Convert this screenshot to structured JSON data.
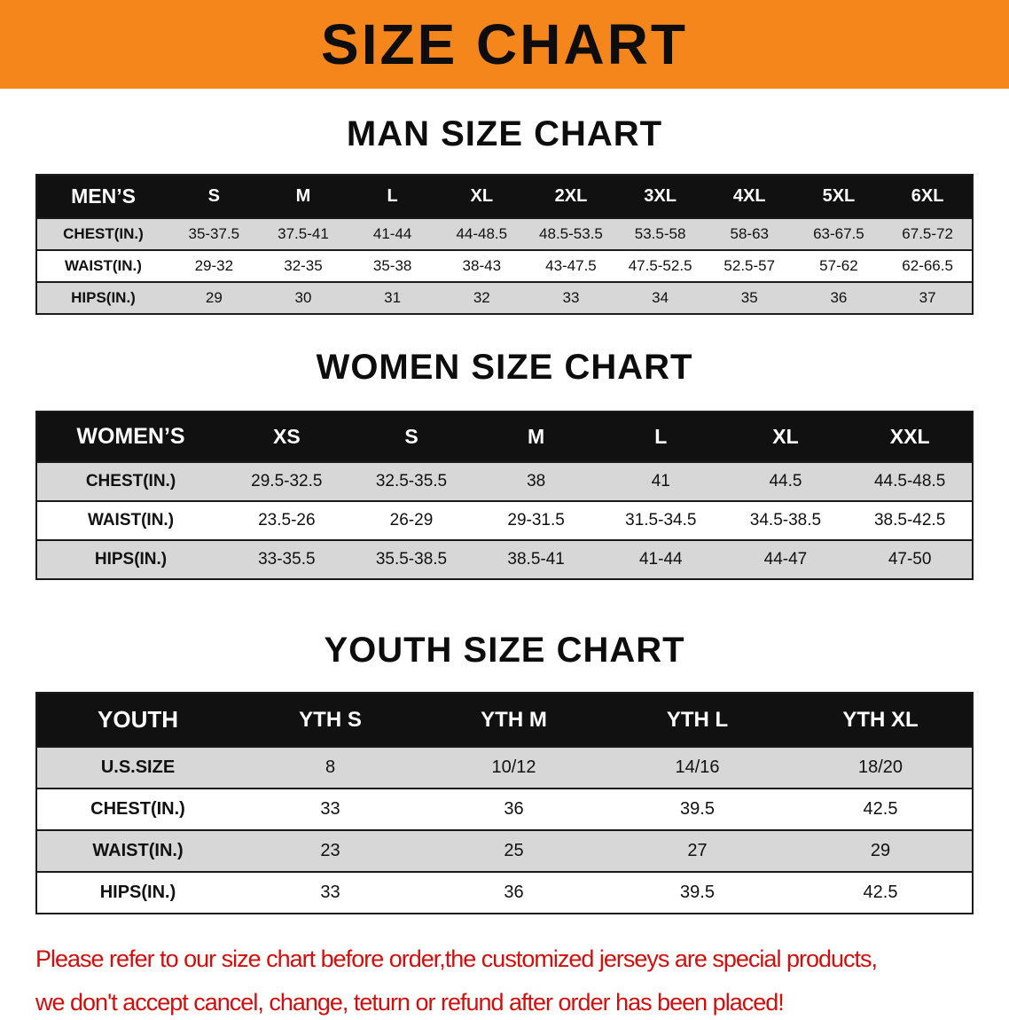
{
  "banner": {
    "title": "SIZE CHART"
  },
  "sections": [
    {
      "heading": "MAN SIZE CHART",
      "table": {
        "header": [
          "MEN’S",
          "S",
          "M",
          "L",
          "XL",
          "2XL",
          "3XL",
          "4XL",
          "5XL",
          "6XL"
        ],
        "rows": [
          [
            "CHEST(IN.)",
            "35-37.5",
            "37.5-41",
            "41-44",
            "44-48.5",
            "48.5-53.5",
            "53.5-58",
            "58-63",
            "63-67.5",
            "67.5-72"
          ],
          [
            "WAIST(IN.)",
            "29-32",
            "32-35",
            "35-38",
            "38-43",
            "43-47.5",
            "47.5-52.5",
            "52.5-57",
            "57-62",
            "62-66.5"
          ],
          [
            "HIPS(IN.)",
            "29",
            "30",
            "31",
            "32",
            "33",
            "34",
            "35",
            "36",
            "37"
          ]
        ]
      }
    },
    {
      "heading": "WOMEN SIZE CHART",
      "table": {
        "header": [
          "WOMEN’S",
          "XS",
          "S",
          "M",
          "L",
          "XL",
          "XXL"
        ],
        "rows": [
          [
            "CHEST(IN.)",
            "29.5-32.5",
            "32.5-35.5",
            "38",
            "41",
            "44.5",
            "44.5-48.5"
          ],
          [
            "WAIST(IN.)",
            "23.5-26",
            "26-29",
            "29-31.5",
            "31.5-34.5",
            "34.5-38.5",
            "38.5-42.5"
          ],
          [
            "HIPS(IN.)",
            "33-35.5",
            "35.5-38.5",
            "38.5-41",
            "41-44",
            "44-47",
            "47-50"
          ]
        ]
      }
    },
    {
      "heading": "YOUTH SIZE CHART",
      "table": {
        "header": [
          "YOUTH",
          "YTH S",
          "YTH M",
          "YTH L",
          "YTH XL"
        ],
        "rows": [
          [
            "U.S.SIZE",
            "8",
            "10/12",
            "14/16",
            "18/20"
          ],
          [
            "CHEST(IN.)",
            "33",
            "36",
            "39.5",
            "42.5"
          ],
          [
            "WAIST(IN.)",
            "23",
            "25",
            "27",
            "29"
          ],
          [
            "HIPS(IN.)",
            "33",
            "36",
            "39.5",
            "42.5"
          ]
        ]
      }
    }
  ],
  "disclaimer": {
    "line1": "Please refer to our size chart before order,the customized jerseys are special products,",
    "line2": "we don't accept cancel, change, teturn or refund after order has been placed!"
  },
  "colors": {
    "banner_bg": "#f5861c",
    "ink": "#111111",
    "header_bg": "#111111",
    "header_fg": "#ffffff",
    "row_alt": "#d7d7d7",
    "line": "#1a1a1a",
    "accent_red": "#d40d0d"
  }
}
